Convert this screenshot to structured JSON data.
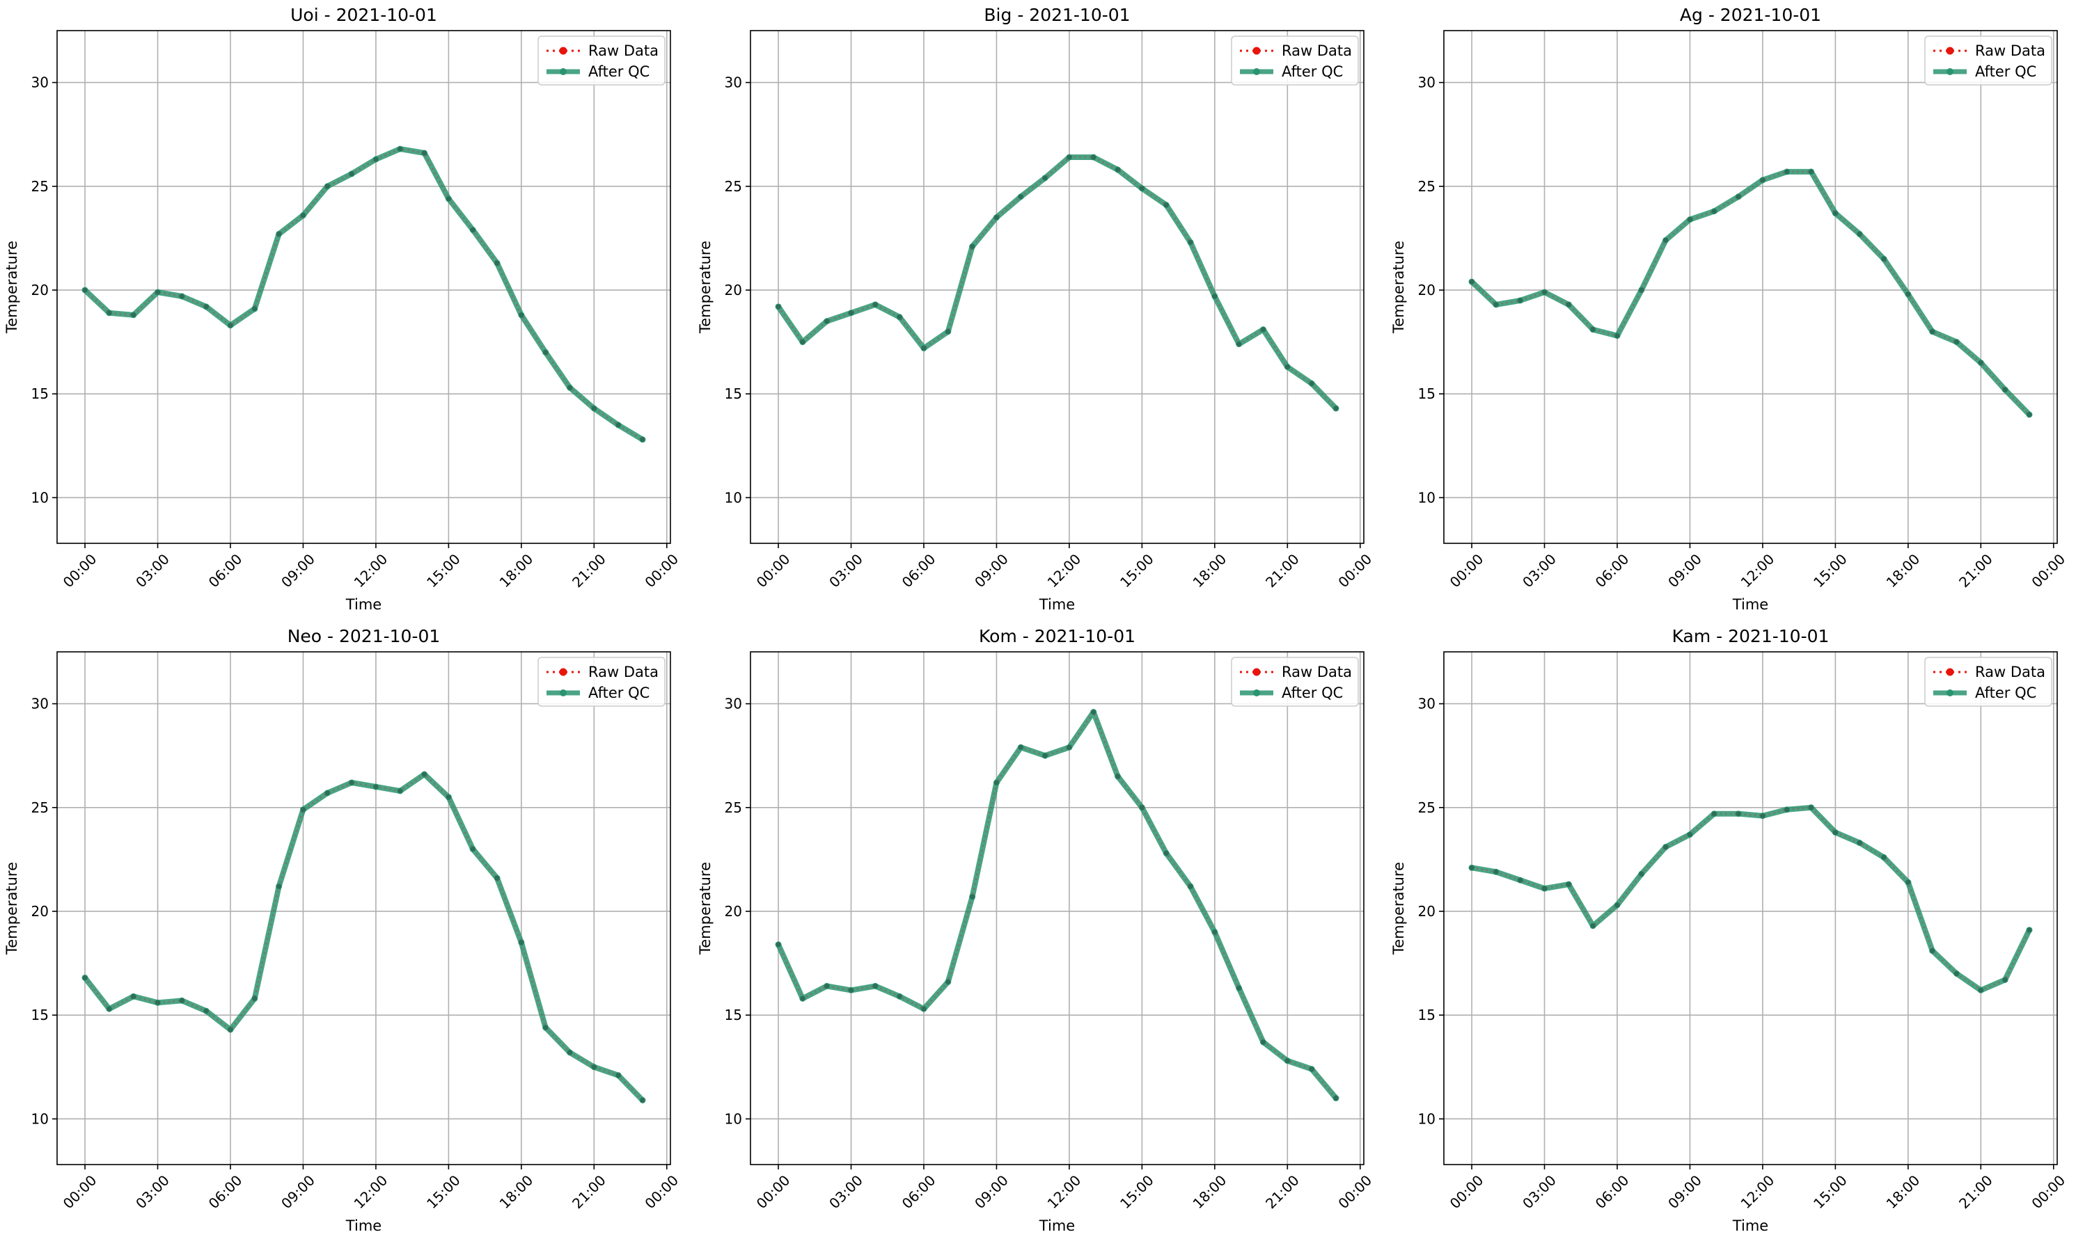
{
  "colors": {
    "raw": "#e8150c",
    "qc": "#2a9470",
    "grid": "#b0b0b0",
    "axis": "#000000"
  },
  "chart_data": [
    {
      "type": "line",
      "title": "Uoi - 2021-10-01",
      "xlabel": "Time",
      "ylabel": "Temperature",
      "x_ticks": [
        "00:00",
        "03:00",
        "06:00",
        "09:00",
        "12:00",
        "15:00",
        "18:00",
        "21:00",
        "00:00"
      ],
      "y_ticks": [
        10,
        15,
        20,
        25,
        30
      ],
      "xlim_hours": [
        -1.15,
        24.15
      ],
      "ylim": [
        7.8,
        32.5
      ],
      "grid": true,
      "legend": "top-right",
      "hours": [
        0,
        1,
        2,
        3,
        4,
        5,
        6,
        7,
        8,
        9,
        10,
        11,
        12,
        13,
        14,
        15,
        16,
        17,
        18,
        19,
        20,
        21,
        22,
        23
      ],
      "series": [
        {
          "name": "Raw Data",
          "values": [
            20.0,
            18.9,
            18.8,
            19.9,
            19.7,
            19.2,
            18.3,
            19.1,
            22.7,
            23.6,
            25.0,
            25.6,
            26.3,
            26.8,
            26.6,
            24.4,
            22.9,
            21.3,
            18.8,
            17.0,
            15.3,
            14.3,
            13.5,
            12.8
          ]
        },
        {
          "name": "After QC",
          "values": [
            20.0,
            18.9,
            18.8,
            19.9,
            19.7,
            19.2,
            18.3,
            19.1,
            22.7,
            23.6,
            25.0,
            25.6,
            26.3,
            26.8,
            26.6,
            24.4,
            22.9,
            21.3,
            18.8,
            17.0,
            15.3,
            14.3,
            13.5,
            12.8
          ]
        }
      ]
    },
    {
      "type": "line",
      "title": "Big - 2021-10-01",
      "xlabel": "Time",
      "ylabel": "Temperature",
      "x_ticks": [
        "00:00",
        "03:00",
        "06:00",
        "09:00",
        "12:00",
        "15:00",
        "18:00",
        "21:00",
        "00:00"
      ],
      "y_ticks": [
        10,
        15,
        20,
        25,
        30
      ],
      "xlim_hours": [
        -1.15,
        24.15
      ],
      "ylim": [
        7.8,
        32.5
      ],
      "grid": true,
      "legend": "top-right",
      "hours": [
        0,
        1,
        2,
        3,
        4,
        5,
        6,
        7,
        8,
        9,
        10,
        11,
        12,
        13,
        14,
        15,
        16,
        17,
        18,
        19,
        20,
        21,
        22,
        23
      ],
      "series": [
        {
          "name": "Raw Data",
          "values": [
            19.2,
            17.5,
            18.5,
            18.9,
            19.3,
            18.7,
            17.2,
            18.0,
            22.1,
            23.5,
            24.5,
            25.4,
            26.4,
            26.4,
            25.8,
            24.9,
            24.1,
            22.3,
            19.7,
            17.4,
            18.1,
            16.3,
            15.5,
            14.3
          ]
        },
        {
          "name": "After QC",
          "values": [
            19.2,
            17.5,
            18.5,
            18.9,
            19.3,
            18.7,
            17.2,
            18.0,
            22.1,
            23.5,
            24.5,
            25.4,
            26.4,
            26.4,
            25.8,
            24.9,
            24.1,
            22.3,
            19.7,
            17.4,
            18.1,
            16.3,
            15.5,
            14.3
          ]
        }
      ]
    },
    {
      "type": "line",
      "title": "Ag - 2021-10-01",
      "xlabel": "Time",
      "ylabel": "Temperature",
      "x_ticks": [
        "00:00",
        "03:00",
        "06:00",
        "09:00",
        "12:00",
        "15:00",
        "18:00",
        "21:00",
        "00:00"
      ],
      "y_ticks": [
        10,
        15,
        20,
        25,
        30
      ],
      "xlim_hours": [
        -1.15,
        24.15
      ],
      "ylim": [
        7.8,
        32.5
      ],
      "grid": true,
      "legend": "top-right",
      "hours": [
        0,
        1,
        2,
        3,
        4,
        5,
        6,
        7,
        8,
        9,
        10,
        11,
        12,
        13,
        14,
        15,
        16,
        17,
        18,
        19,
        20,
        21,
        22,
        23
      ],
      "series": [
        {
          "name": "Raw Data",
          "values": [
            20.4,
            19.3,
            19.5,
            19.9,
            19.3,
            18.1,
            17.8,
            20.0,
            22.4,
            23.4,
            23.8,
            24.5,
            25.3,
            25.7,
            25.7,
            23.7,
            22.7,
            21.5,
            19.8,
            18.0,
            17.5,
            16.5,
            15.2,
            14.0
          ]
        },
        {
          "name": "After QC",
          "values": [
            20.4,
            19.3,
            19.5,
            19.9,
            19.3,
            18.1,
            17.8,
            20.0,
            22.4,
            23.4,
            23.8,
            24.5,
            25.3,
            25.7,
            25.7,
            23.7,
            22.7,
            21.5,
            19.8,
            18.0,
            17.5,
            16.5,
            15.2,
            14.0
          ]
        }
      ]
    },
    {
      "type": "line",
      "title": "Neo - 2021-10-01",
      "xlabel": "Time",
      "ylabel": "Temperature",
      "x_ticks": [
        "00:00",
        "03:00",
        "06:00",
        "09:00",
        "12:00",
        "15:00",
        "18:00",
        "21:00",
        "00:00"
      ],
      "y_ticks": [
        10,
        15,
        20,
        25,
        30
      ],
      "xlim_hours": [
        -1.15,
        24.15
      ],
      "ylim": [
        7.8,
        32.5
      ],
      "grid": true,
      "legend": "top-right",
      "hours": [
        0,
        1,
        2,
        3,
        4,
        5,
        6,
        7,
        8,
        9,
        10,
        11,
        12,
        13,
        14,
        15,
        16,
        17,
        18,
        19,
        20,
        21,
        22,
        23
      ],
      "series": [
        {
          "name": "Raw Data",
          "values": [
            16.8,
            15.3,
            15.9,
            15.6,
            15.7,
            15.2,
            14.3,
            15.8,
            21.2,
            24.9,
            25.7,
            26.2,
            26.0,
            25.8,
            26.6,
            25.5,
            23.0,
            21.6,
            18.5,
            14.4,
            13.2,
            12.5,
            12.1,
            10.9
          ]
        },
        {
          "name": "After QC",
          "values": [
            16.8,
            15.3,
            15.9,
            15.6,
            15.7,
            15.2,
            14.3,
            15.8,
            21.2,
            24.9,
            25.7,
            26.2,
            26.0,
            25.8,
            26.6,
            25.5,
            23.0,
            21.6,
            18.5,
            14.4,
            13.2,
            12.5,
            12.1,
            10.9
          ]
        }
      ]
    },
    {
      "type": "line",
      "title": "Kom - 2021-10-01",
      "xlabel": "Time",
      "ylabel": "Temperature",
      "x_ticks": [
        "00:00",
        "03:00",
        "06:00",
        "09:00",
        "12:00",
        "15:00",
        "18:00",
        "21:00",
        "00:00"
      ],
      "y_ticks": [
        10,
        15,
        20,
        25,
        30
      ],
      "xlim_hours": [
        -1.15,
        24.15
      ],
      "ylim": [
        7.8,
        32.5
      ],
      "grid": true,
      "legend": "top-right",
      "hours": [
        0,
        1,
        2,
        3,
        4,
        5,
        6,
        7,
        8,
        9,
        10,
        11,
        12,
        13,
        14,
        15,
        16,
        17,
        18,
        19,
        20,
        21,
        22,
        23
      ],
      "series": [
        {
          "name": "Raw Data",
          "values": [
            18.4,
            15.8,
            16.4,
            16.2,
            16.4,
            15.9,
            15.3,
            16.6,
            20.7,
            26.2,
            27.9,
            27.5,
            27.9,
            29.6,
            26.5,
            25.0,
            22.8,
            21.2,
            19.0,
            16.3,
            13.7,
            12.8,
            12.4,
            11.0
          ]
        },
        {
          "name": "After QC",
          "values": [
            18.4,
            15.8,
            16.4,
            16.2,
            16.4,
            15.9,
            15.3,
            16.6,
            20.7,
            26.2,
            27.9,
            27.5,
            27.9,
            29.6,
            26.5,
            25.0,
            22.8,
            21.2,
            19.0,
            16.3,
            13.7,
            12.8,
            12.4,
            11.0
          ]
        }
      ]
    },
    {
      "type": "line",
      "title": "Kam - 2021-10-01",
      "xlabel": "Time",
      "ylabel": "Temperature",
      "x_ticks": [
        "00:00",
        "03:00",
        "06:00",
        "09:00",
        "12:00",
        "15:00",
        "18:00",
        "21:00",
        "00:00"
      ],
      "y_ticks": [
        10,
        15,
        20,
        25,
        30
      ],
      "xlim_hours": [
        -1.15,
        24.15
      ],
      "ylim": [
        7.8,
        32.5
      ],
      "grid": true,
      "legend": "top-right",
      "hours": [
        0,
        1,
        2,
        3,
        4,
        5,
        6,
        7,
        8,
        9,
        10,
        11,
        12,
        13,
        14,
        15,
        16,
        17,
        18,
        19,
        20,
        21,
        22,
        23
      ],
      "series": [
        {
          "name": "Raw Data",
          "values": [
            22.1,
            21.9,
            21.5,
            21.1,
            21.3,
            19.3,
            20.3,
            21.8,
            23.1,
            23.7,
            24.7,
            24.7,
            24.6,
            24.9,
            25.0,
            23.8,
            23.3,
            22.6,
            21.4,
            18.1,
            17.0,
            16.2,
            16.7,
            19.1
          ]
        },
        {
          "name": "After QC",
          "values": [
            22.1,
            21.9,
            21.5,
            21.1,
            21.3,
            19.3,
            20.3,
            21.8,
            23.1,
            23.7,
            24.7,
            24.7,
            24.6,
            24.9,
            25.0,
            23.8,
            23.3,
            22.6,
            21.4,
            18.1,
            17.0,
            16.2,
            16.7,
            19.1
          ]
        }
      ]
    }
  ]
}
